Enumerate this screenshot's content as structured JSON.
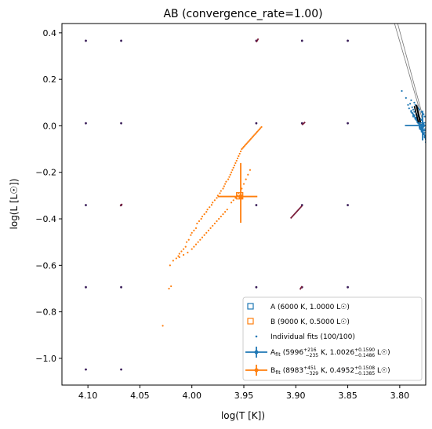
{
  "chart_data": {
    "type": "scatter",
    "title": "AB (convergence_rate=1.00)",
    "xlabel": "log(T [K])",
    "ylabel": "log(L [L☉])",
    "xlim": [
      4.125,
      3.775
    ],
    "ylim": [
      -1.115,
      0.44
    ],
    "x_inverted": true,
    "grid": false,
    "legend_position": "lower-right",
    "x_ticks": [
      {
        "value": 4.1,
        "label": "4.10"
      },
      {
        "value": 4.05,
        "label": "4.05"
      },
      {
        "value": 4.0,
        "label": "4.00"
      },
      {
        "value": 3.95,
        "label": "3.95"
      },
      {
        "value": 3.9,
        "label": "3.90"
      },
      {
        "value": 3.85,
        "label": "3.85"
      },
      {
        "value": 3.8,
        "label": "3.80"
      }
    ],
    "y_ticks": [
      {
        "value": 0.4,
        "label": "0.4"
      },
      {
        "value": 0.2,
        "label": "0.2"
      },
      {
        "value": 0.0,
        "label": "0.0"
      },
      {
        "value": -0.2,
        "label": "−0.2"
      },
      {
        "value": -0.4,
        "label": "−0.4"
      },
      {
        "value": -0.6,
        "label": "−0.6"
      },
      {
        "value": -0.8,
        "label": "−0.8"
      },
      {
        "value": -1.0,
        "label": "−1.0"
      }
    ],
    "colors": {
      "A": "#1f77b4",
      "B": "#ff7f0e",
      "grid_tracks": "#3b1f5a",
      "tracks": "#7a1c3a"
    },
    "true_points": [
      {
        "name": "A",
        "x": 3.778,
        "y": 0.0,
        "legend": "A (6000 K, 1.0000 L☉)"
      },
      {
        "name": "B",
        "x": 3.954,
        "y": -0.301,
        "legend": "B (9000 K, 0.5000 L☉)"
      }
    ],
    "scatter_legend": "Individual fits (100/100)",
    "fits": [
      {
        "name": "A_fit",
        "x": 3.778,
        "y": 0.001,
        "xerr": [
          0.017,
          0.016
        ],
        "yerr": [
          0.064,
          0.064
        ],
        "legend_prefix": "A",
        "legend_sub": "fit",
        "legend_body": " (5996",
        "legend_t_up": "+216",
        "legend_t_down": "−235",
        "legend_mid": " K, 1.0026",
        "legend_l_up": "+0.1590",
        "legend_l_down": "−0.1486",
        "legend_tail": " L☉)"
      },
      {
        "name": "B_fit",
        "x": 3.953,
        "y": -0.304,
        "xerr": [
          0.022,
          0.016
        ],
        "yerr": [
          0.144,
          0.113
        ],
        "legend_prefix": "B",
        "legend_sub": "fit",
        "legend_body": " (8983",
        "legend_t_up": "+451",
        "legend_t_down": "−329",
        "legend_mid": " K, 0.4952",
        "legend_l_up": "+0.1508",
        "legend_l_down": "−0.1385",
        "legend_tail": " L☉)"
      }
    ],
    "grid_points": {
      "x": [
        4.102,
        4.068,
        3.938,
        3.894,
        3.85
      ],
      "y": [
        0.366,
        0.011,
        -0.341,
        -0.694,
        -1.048
      ]
    },
    "track_segments": [
      {
        "x": [
          3.938,
          3.936
        ],
        "y": [
          0.36,
          0.375
        ]
      },
      {
        "x": [
          3.894,
          3.891
        ],
        "y": [
          0.004,
          0.016
        ]
      },
      {
        "x": [
          3.905,
          3.894
        ],
        "y": [
          -0.398,
          -0.344
        ]
      },
      {
        "x": [
          3.896,
          3.894
        ],
        "y": [
          -0.704,
          -0.69
        ]
      },
      {
        "x": [
          3.938,
          3.936
        ],
        "y": [
          -1.063,
          -1.044
        ]
      },
      {
        "x": [
          4.069,
          4.067
        ],
        "y": [
          -0.345,
          -0.336
        ]
      }
    ],
    "lines": [
      {
        "x": [
          3.805,
          3.778
        ],
        "y": [
          0.44,
          0.024
        ]
      },
      {
        "x": [
          3.802,
          3.778
        ],
        "y": [
          0.44,
          0.043
        ]
      }
    ],
    "scatter_A": {
      "x": [
        3.798,
        3.794,
        3.789,
        3.786,
        3.785,
        3.784,
        3.783,
        3.782,
        3.781,
        3.779,
        3.777,
        3.776,
        3.79,
        3.788,
        3.787,
        3.786,
        3.784,
        3.783,
        3.782,
        3.781,
        3.78,
        3.779,
        3.778,
        3.777,
        3.792,
        3.789,
        3.787,
        3.785,
        3.783,
        3.782,
        3.78,
        3.779,
        3.778,
        3.776,
        3.791,
        3.788,
        3.786,
        3.784,
        3.783,
        3.781,
        3.78,
        3.779,
        3.777,
        3.776,
        3.789,
        3.787,
        3.786,
        3.785,
        3.783,
        3.782,
        3.781,
        3.779,
        3.778,
        3.777,
        3.788,
        3.786,
        3.785,
        3.784,
        3.782,
        3.781,
        3.78,
        3.779,
        3.777,
        3.776,
        3.787,
        3.785,
        3.784,
        3.783,
        3.781,
        3.78,
        3.779,
        3.778,
        3.776,
        3.775,
        3.786,
        3.784,
        3.783,
        3.782,
        3.78,
        3.779,
        3.778,
        3.777,
        3.776,
        3.775,
        3.785,
        3.783,
        3.782,
        3.781,
        3.78,
        3.779,
        3.777,
        3.776,
        3.775,
        3.775,
        3.784,
        3.782,
        3.781,
        3.78
      ],
      "y": [
        0.15,
        0.12,
        0.11,
        0.1,
        0.09,
        0.085,
        0.08,
        0.075,
        0.07,
        0.06,
        0.05,
        0.04,
        0.095,
        0.08,
        0.07,
        0.06,
        0.05,
        0.045,
        0.04,
        0.035,
        0.03,
        0.025,
        0.02,
        0.01,
        0.09,
        0.06,
        0.04,
        0.03,
        0.02,
        0.01,
        0.0,
        -0.005,
        -0.01,
        -0.02,
        0.075,
        0.055,
        0.045,
        0.035,
        0.025,
        0.015,
        0.005,
        -0.01,
        -0.02,
        -0.03,
        0.065,
        0.05,
        0.04,
        0.03,
        0.02,
        0.01,
        -0.005,
        -0.015,
        -0.025,
        -0.035,
        0.055,
        0.045,
        0.035,
        0.025,
        0.015,
        0.0,
        -0.01,
        -0.02,
        -0.03,
        -0.04,
        0.045,
        0.035,
        0.025,
        0.015,
        0.005,
        -0.01,
        -0.02,
        -0.03,
        -0.045,
        -0.05,
        0.04,
        0.03,
        0.02,
        0.01,
        0.0,
        -0.015,
        -0.025,
        -0.035,
        -0.05,
        -0.06,
        0.03,
        0.02,
        0.01,
        -0.005,
        -0.015,
        -0.025,
        -0.035,
        -0.045,
        -0.055,
        -0.07,
        0.035,
        0.015,
        0.005,
        -0.008
      ]
    },
    "scatter_B": {
      "x": [
        4.028,
        4.022,
        4.02,
        4.018,
        4.015,
        4.013,
        4.012,
        4.01,
        4.008,
        4.006,
        4.005,
        4.003,
        4.001,
        4.0,
        3.998,
        3.996,
        3.995,
        3.993,
        3.991,
        3.99,
        3.988,
        3.986,
        3.985,
        3.983,
        3.981,
        3.98,
        3.978,
        3.976,
        3.975,
        3.973,
        3.972,
        3.97,
        3.969,
        3.968,
        3.967,
        3.965,
        3.964,
        3.963,
        3.962,
        3.961,
        3.96,
        3.959,
        3.958,
        3.957,
        3.956,
        3.955,
        3.954,
        3.953,
        3.952,
        3.951,
        3.95,
        3.949,
        3.948,
        3.947,
        3.946,
        3.945,
        3.944,
        3.943,
        3.942,
        3.941,
        3.94,
        3.939,
        3.938,
        3.937,
        3.936,
        3.935,
        3.934,
        3.933,
        3.955,
        3.952,
        3.95,
        3.948,
        3.946,
        3.944,
        3.958,
        3.956,
        3.962,
        3.96,
        3.966,
        3.968,
        3.97,
        3.972,
        3.974,
        3.976,
        3.978,
        3.98,
        3.982,
        3.984,
        3.986,
        3.988,
        3.99,
        3.992,
        3.994,
        3.996,
        3.998,
        4.0,
        4.004,
        4.008,
        4.012,
        4.021
      ],
      "y": [
        -0.86,
        -0.7,
        -0.69,
        -0.58,
        -0.57,
        -0.56,
        -0.55,
        -0.54,
        -0.53,
        -0.52,
        -0.5,
        -0.49,
        -0.47,
        -0.46,
        -0.45,
        -0.44,
        -0.42,
        -0.41,
        -0.4,
        -0.39,
        -0.38,
        -0.37,
        -0.36,
        -0.35,
        -0.34,
        -0.33,
        -0.32,
        -0.31,
        -0.3,
        -0.29,
        -0.28,
        -0.27,
        -0.26,
        -0.25,
        -0.24,
        -0.23,
        -0.22,
        -0.21,
        -0.2,
        -0.19,
        -0.18,
        -0.17,
        -0.16,
        -0.15,
        -0.14,
        -0.13,
        -0.12,
        -0.11,
        -0.1,
        -0.095,
        -0.09,
        -0.085,
        -0.08,
        -0.075,
        -0.07,
        -0.065,
        -0.06,
        -0.055,
        -0.05,
        -0.045,
        -0.04,
        -0.035,
        -0.03,
        -0.025,
        -0.02,
        -0.015,
        -0.01,
        -0.005,
        -0.29,
        -0.27,
        -0.25,
        -0.23,
        -0.21,
        -0.19,
        -0.31,
        -0.3,
        -0.33,
        -0.32,
        -0.36,
        -0.37,
        -0.38,
        -0.39,
        -0.4,
        -0.41,
        -0.42,
        -0.43,
        -0.44,
        -0.45,
        -0.46,
        -0.47,
        -0.48,
        -0.49,
        -0.5,
        -0.51,
        -0.52,
        -0.53,
        -0.545,
        -0.555,
        -0.565,
        -0.6
      ]
    }
  }
}
